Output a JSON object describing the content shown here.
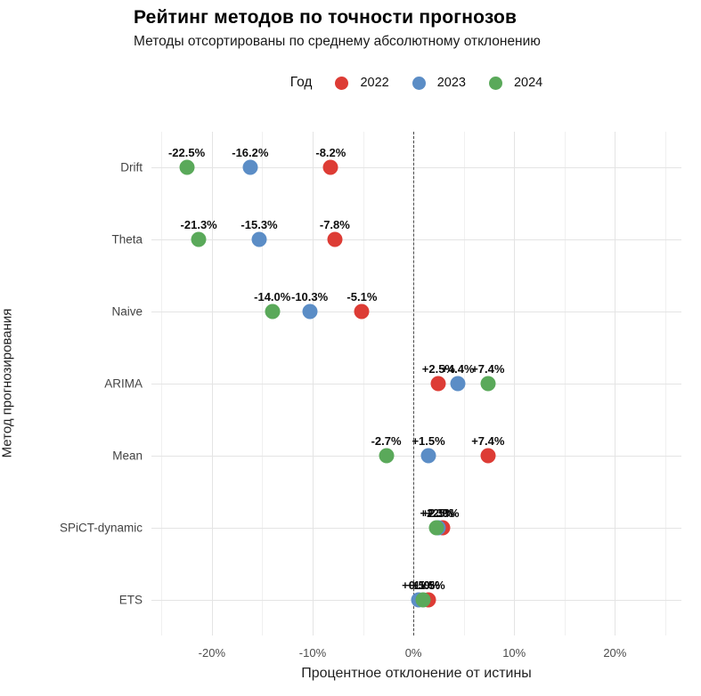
{
  "header": {
    "title": "Рейтинг методов по точности прогнозов",
    "subtitle": "Методы отсортированы по среднему абсолютному отклонению"
  },
  "legend": {
    "title": "Год",
    "position": "top",
    "items": [
      {
        "label": "2022",
        "color": "#dd3c35"
      },
      {
        "label": "2023",
        "color": "#5b8dc6"
      },
      {
        "label": "2024",
        "color": "#5aa95a"
      }
    ]
  },
  "chart_data": {
    "type": "scatter",
    "variant": "horizontal-dot-plot",
    "title": "Рейтинг методов по точности прогнозов",
    "subtitle": "Методы отсортированы по среднему абсолютному отклонению",
    "xlabel": "Процентное отклонение от истины",
    "ylabel": "Метод прогнозирования",
    "categories": [
      "Drift",
      "Theta",
      "Naive",
      "ARIMA",
      "Mean",
      "SPiCT-dynamic",
      "ETS"
    ],
    "series": [
      {
        "name": "2022",
        "color": "#dd3c35",
        "values": [
          -8.2,
          -7.8,
          -5.1,
          2.5,
          7.4,
          2.9,
          1.5
        ],
        "labels": [
          "-8.2%",
          "-7.8%",
          "-5.1%",
          "+2.5%",
          "+7.4%",
          "+2.9%",
          "+1.5%"
        ]
      },
      {
        "name": "2023",
        "color": "#5b8dc6",
        "values": [
          -16.2,
          -15.3,
          -10.3,
          4.4,
          1.5,
          2.5,
          0.5
        ],
        "labels": [
          "-16.2%",
          "-15.3%",
          "-10.3%",
          "+4.4%",
          "+1.5%",
          "+2.5%",
          "+0.5%"
        ]
      },
      {
        "name": "2024",
        "color": "#5aa95a",
        "values": [
          -22.5,
          -21.3,
          -14.0,
          7.4,
          -2.7,
          2.3,
          1.0
        ],
        "labels": [
          "-22.5%",
          "-21.3%",
          "-14.0%",
          "+7.4%",
          "-2.7%",
          "+2.3%",
          "+1.0%"
        ]
      }
    ],
    "xlim": [
      -26,
      26.6
    ],
    "x_major_ticks": [
      -20,
      -10,
      0,
      10,
      20
    ],
    "x_minor_ticks": [
      -25,
      -15,
      -5,
      5,
      15,
      25
    ],
    "x_tick_labels": [
      "-20%",
      "-10%",
      "0%",
      "10%",
      "20%"
    ],
    "zero_reference_line": 0,
    "grid": true,
    "legend_position": "top"
  }
}
